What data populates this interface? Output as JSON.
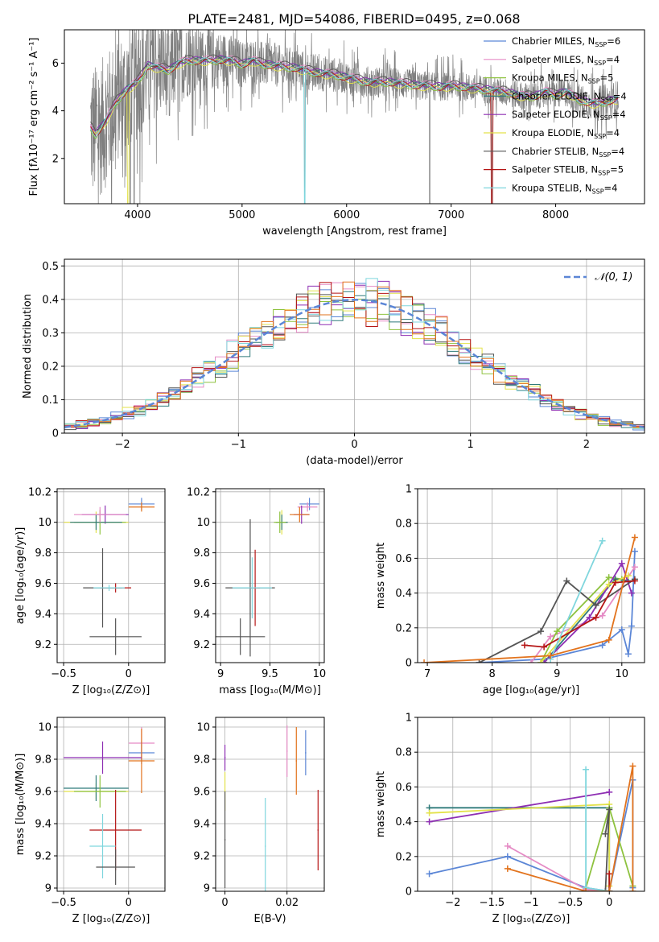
{
  "figure": {
    "title": "PLATE=2481, MJD=54086, FIBERID=0495, z=0.068"
  },
  "colors": {
    "chabrier_miles": "#5b86d6",
    "salpeter_miles": "#e58bc5",
    "kroupa_miles": "#8ec23f",
    "chabrier_elodie": "#2f7a7a",
    "salpeter_elodie": "#8e2fb3",
    "kroupa_elodie": "#e3e24a",
    "chabrier_stelib": "#555555",
    "salpeter_stelib": "#b51515",
    "kroupa_stelib": "#7fd6dd",
    "orange": "#e2731d",
    "spectrum": "#7f7f7f",
    "normal": "#5b86d6"
  },
  "chart_data": [
    {
      "id": "spectrum",
      "type": "line",
      "title": "PLATE=2481, MJD=54086, FIBERID=0495, z=0.068",
      "xlabel": "wavelength [Angstrom, rest frame]",
      "ylabel": "Flux [fλ10⁻¹⁷ erg cm⁻² s⁻¹ A⁻¹]",
      "xlim": [
        3300,
        8850
      ],
      "ylim": [
        0.1,
        7.4
      ],
      "xticks": [
        4000,
        5000,
        6000,
        7000,
        8000
      ],
      "yticks": [
        2,
        4,
        6
      ],
      "grid": false,
      "legend_position": "top-right",
      "legend": [
        {
          "label": "Chabrier MILES, N",
          "sub": "SSP",
          "eq": "=6",
          "color": "#5b86d6"
        },
        {
          "label": "Salpeter MILES, N",
          "sub": "SSP",
          "eq": "=4",
          "color": "#e58bc5"
        },
        {
          "label": "Kroupa MILES, N",
          "sub": "SSP",
          "eq": "=5",
          "color": "#8ec23f"
        },
        {
          "label": "Chabrier ELODIE, N",
          "sub": "SSP",
          "eq": "=4",
          "color": "#2f7a7a"
        },
        {
          "label": "Salpeter ELODIE, N",
          "sub": "SSP",
          "eq": "=4",
          "color": "#8e2fb3"
        },
        {
          "label": "Kroupa ELODIE, N",
          "sub": "SSP",
          "eq": "=4",
          "color": "#e3e24a"
        },
        {
          "label": "Chabrier STELIB, N",
          "sub": "SSP",
          "eq": "=4",
          "color": "#555555"
        },
        {
          "label": "Salpeter STELIB, N",
          "sub": "SSP",
          "eq": "=5",
          "color": "#b51515"
        },
        {
          "label": "Kroupa STELIB, N",
          "sub": "SSP",
          "eq": "=4",
          "color": "#7fd6dd"
        }
      ],
      "continuum": [
        [
          3550,
          3.3
        ],
        [
          3600,
          3.0
        ],
        [
          3700,
          3.6
        ],
        [
          3800,
          4.4
        ],
        [
          3900,
          4.9
        ],
        [
          4000,
          5.2
        ],
        [
          4100,
          5.9
        ],
        [
          4200,
          5.8
        ],
        [
          4300,
          5.7
        ],
        [
          4400,
          6.0
        ],
        [
          4500,
          6.1
        ],
        [
          4600,
          6.1
        ],
        [
          4700,
          6.1
        ],
        [
          4800,
          6.15
        ],
        [
          4900,
          6.1
        ],
        [
          5000,
          5.95
        ],
        [
          5100,
          6.1
        ],
        [
          5200,
          5.95
        ],
        [
          5300,
          5.9
        ],
        [
          5400,
          5.85
        ],
        [
          5500,
          5.8
        ],
        [
          5600,
          5.7
        ],
        [
          5700,
          5.6
        ],
        [
          5800,
          5.55
        ],
        [
          5900,
          5.5
        ],
        [
          6000,
          5.4
        ],
        [
          6100,
          5.3
        ],
        [
          6200,
          5.2
        ],
        [
          6300,
          5.2
        ],
        [
          6400,
          5.2
        ],
        [
          6500,
          5.15
        ],
        [
          6600,
          5.1
        ],
        [
          6700,
          5.05
        ],
        [
          6800,
          5.05
        ],
        [
          6900,
          5.0
        ],
        [
          7000,
          5.05
        ],
        [
          7100,
          5.0
        ],
        [
          7200,
          4.95
        ],
        [
          7300,
          4.9
        ],
        [
          7400,
          4.85
        ],
        [
          7500,
          4.8
        ],
        [
          7600,
          4.7
        ],
        [
          7700,
          4.6
        ],
        [
          7800,
          4.6
        ],
        [
          7900,
          4.8
        ],
        [
          8000,
          4.65
        ],
        [
          8100,
          4.8
        ],
        [
          8200,
          4.5
        ],
        [
          8300,
          4.35
        ],
        [
          8400,
          4.3
        ],
        [
          8500,
          4.4
        ],
        [
          8600,
          4.5
        ]
      ],
      "noise": [
        [
          3550,
          3.0
        ],
        [
          4000,
          2.5
        ],
        [
          4500,
          1.5
        ],
        [
          5000,
          1.0
        ],
        [
          6000,
          0.7
        ],
        [
          7000,
          0.6
        ],
        [
          7500,
          0.6
        ],
        [
          8000,
          0.6
        ],
        [
          8600,
          0.8
        ]
      ],
      "absorption_lines": [
        [
          3930,
          0.1
        ],
        [
          3968,
          0.1
        ],
        [
          5600,
          0.1
        ],
        [
          6795,
          0.1
        ],
        [
          7390,
          0.1
        ],
        [
          4305,
          3.8
        ],
        [
          5175,
          5.2
        ],
        [
          5890,
          5.0
        ]
      ],
      "model_offsets": [
        0.0,
        0.15,
        -0.1,
        0.05,
        0.1,
        -0.15,
        0.2,
        -0.05,
        0.0
      ]
    },
    {
      "id": "residuals",
      "type": "step",
      "xlabel": "(data-model)/error",
      "ylabel": "Normed distribution",
      "xlim": [
        -2.5,
        2.5
      ],
      "ylim": [
        0.0,
        0.52
      ],
      "xticks": [
        -2,
        -1,
        0,
        1,
        2
      ],
      "yticks": [
        0.0,
        0.1,
        0.2,
        0.3,
        0.4,
        0.5
      ],
      "grid": true,
      "legend_position": "top-right",
      "legend_label": "𝒩(0, 1)",
      "bin_width": 0.1
    },
    {
      "id": "age_vs_Z",
      "type": "errorbar",
      "xlabel": "Z [log₁₀(Z/Z⊙)]",
      "ylabel": "age  [log₁₀(age/yr)]",
      "xlim": [
        -0.55,
        0.28
      ],
      "ylim": [
        9.08,
        10.22
      ],
      "xticks": [
        -0.5,
        0.0
      ],
      "yticks": [
        9.2,
        9.4,
        9.6,
        9.8,
        10.0,
        10.2
      ],
      "grid": true,
      "points": [
        {
          "x": 0.1,
          "y": 10.12,
          "xerr": 0.1,
          "yerr": 0.04,
          "color": "#5b86d6"
        },
        {
          "x": 0.1,
          "y": 10.1,
          "xerr": 0.1,
          "yerr": 0.03,
          "color": "#e2731d"
        },
        {
          "x": -0.18,
          "y": 10.05,
          "xerr": 0.18,
          "yerr": 0.06,
          "color": "#8e2fb3"
        },
        {
          "x": -0.25,
          "y": 10.0,
          "xerr": 0.25,
          "yerr": 0.07,
          "color": "#e3e24a"
        },
        {
          "x": -0.22,
          "y": 10.0,
          "xerr": 0.2,
          "yerr": 0.08,
          "color": "#8ec23f"
        },
        {
          "x": -0.25,
          "y": 10.0,
          "xerr": 0.2,
          "yerr": 0.05,
          "color": "#2f7a7a"
        },
        {
          "x": -0.22,
          "y": 10.05,
          "xerr": 0.2,
          "yerr": 0.05,
          "color": "#e58bc5"
        },
        {
          "x": -0.2,
          "y": 9.57,
          "xerr": 0.15,
          "yerr": 0.26,
          "color": "#555555"
        },
        {
          "x": -0.1,
          "y": 9.57,
          "xerr": 0.12,
          "yerr": 0.03,
          "color": "#b51515"
        },
        {
          "x": -0.1,
          "y": 9.25,
          "xerr": 0.2,
          "yerr": 0.12,
          "color": "#555555"
        },
        {
          "x": -0.15,
          "y": 9.57,
          "xerr": 0.12,
          "yerr": 0.02,
          "color": "#7fd6dd"
        }
      ]
    },
    {
      "id": "age_vs_mass",
      "type": "errorbar",
      "xlabel": "mass [log₁₀(M/M⊙)]",
      "ylabel": "",
      "xlim": [
        8.95,
        10.05
      ],
      "ylim": [
        9.08,
        10.22
      ],
      "xticks": [
        9.0,
        9.5,
        10.0
      ],
      "yticks": [
        9.2,
        9.4,
        9.6,
        9.8,
        10.0,
        10.2
      ],
      "grid": true,
      "points": [
        {
          "x": 9.9,
          "y": 10.12,
          "xerr": 0.1,
          "yerr": 0.04,
          "color": "#5b86d6"
        },
        {
          "x": 9.88,
          "y": 10.1,
          "xerr": 0.1,
          "yerr": 0.03,
          "color": "#e58bc5"
        },
        {
          "x": 9.82,
          "y": 10.05,
          "xerr": 0.08,
          "yerr": 0.06,
          "color": "#8e2fb3"
        },
        {
          "x": 9.8,
          "y": 10.05,
          "xerr": 0.1,
          "yerr": 0.05,
          "color": "#e2731d"
        },
        {
          "x": 9.62,
          "y": 10.0,
          "xerr": 0.06,
          "yerr": 0.08,
          "color": "#e3e24a"
        },
        {
          "x": 9.62,
          "y": 10.0,
          "xerr": 0.06,
          "yerr": 0.05,
          "color": "#2f7a7a"
        },
        {
          "x": 9.6,
          "y": 10.0,
          "xerr": 0.06,
          "yerr": 0.07,
          "color": "#8ec23f"
        },
        {
          "x": 9.3,
          "y": 9.57,
          "xerr": 0.25,
          "yerr": 0.45,
          "color": "#555555"
        },
        {
          "x": 9.35,
          "y": 9.57,
          "xerr": 0.05,
          "yerr": 0.25,
          "color": "#b51515"
        },
        {
          "x": 9.32,
          "y": 9.57,
          "xerr": 0.2,
          "yerr": 0.2,
          "color": "#7fd6dd"
        },
        {
          "x": 9.2,
          "y": 9.25,
          "xerr": 0.25,
          "yerr": 0.12,
          "color": "#555555"
        }
      ]
    },
    {
      "id": "massweight_vs_age",
      "type": "line",
      "xlabel": "age  [log₁₀(age/yr)]",
      "ylabel": "mass weight",
      "xlim": [
        6.85,
        10.35
      ],
      "ylim": [
        0.0,
        1.0
      ],
      "xticks": [
        7,
        8,
        9,
        10
      ],
      "yticks": [
        0.0,
        0.2,
        0.4,
        0.6,
        0.8,
        1.0
      ],
      "grid": true,
      "series": [
        {
          "color": "#5b86d6",
          "x": [
            7.8,
            8.8,
            9.7,
            10.0,
            10.1,
            10.15,
            10.2
          ],
          "y": [
            0.0,
            0.02,
            0.1,
            0.19,
            0.05,
            0.21,
            0.64
          ]
        },
        {
          "color": "#e58bc5",
          "x": [
            8.6,
            8.9,
            9.7,
            10.2
          ],
          "y": [
            0.0,
            0.15,
            0.27,
            0.55
          ]
        },
        {
          "color": "#8ec23f",
          "x": [
            8.75,
            9.0,
            9.8,
            10.0
          ],
          "y": [
            0.0,
            0.18,
            0.49,
            0.48
          ]
        },
        {
          "color": "#2f7a7a",
          "x": [
            8.8,
            9.9,
            10.1
          ],
          "y": [
            0.0,
            0.48,
            0.47
          ]
        },
        {
          "color": "#8e2fb3",
          "x": [
            8.8,
            9.5,
            10.0,
            10.15
          ],
          "y": [
            0.0,
            0.26,
            0.57,
            0.4
          ]
        },
        {
          "color": "#e3e24a",
          "x": [
            8.75,
            9.8,
            10.1
          ],
          "y": [
            0.0,
            0.45,
            0.5
          ]
        },
        {
          "color": "#555555",
          "x": [
            7.8,
            8.75,
            9.15,
            9.6,
            10.2
          ],
          "y": [
            0.0,
            0.18,
            0.47,
            0.33,
            0.48
          ]
        },
        {
          "color": "#b51515",
          "x": [
            8.5,
            8.8,
            9.6,
            9.9,
            10.2
          ],
          "y": [
            0.1,
            0.09,
            0.26,
            0.46,
            0.47
          ]
        },
        {
          "color": "#7fd6dd",
          "x": [
            8.9,
            9.7
          ],
          "y": [
            0.02,
            0.7
          ]
        },
        {
          "color": "#e2731d",
          "x": [
            6.95,
            8.9,
            9.8,
            10.2
          ],
          "y": [
            0.0,
            0.04,
            0.13,
            0.72
          ]
        }
      ]
    },
    {
      "id": "mass_vs_Z",
      "type": "errorbar",
      "xlabel": "Z [log₁₀(Z/Z⊙)]",
      "ylabel": "mass [log₁₀(M/M⊙)]",
      "xlim": [
        -0.55,
        0.28
      ],
      "ylim": [
        8.98,
        10.06
      ],
      "xticks": [
        -0.5,
        0.0
      ],
      "yticks": [
        9.0,
        9.2,
        9.4,
        9.6,
        9.8,
        10.0
      ],
      "grid": true,
      "points": [
        {
          "x": 0.1,
          "y": 9.9,
          "xerr": 0.1,
          "yerr": 0.1,
          "color": "#e58bc5"
        },
        {
          "x": 0.1,
          "y": 9.84,
          "xerr": 0.1,
          "yerr": 0.07,
          "color": "#5b86d6"
        },
        {
          "x": 0.1,
          "y": 9.79,
          "xerr": 0.1,
          "yerr": 0.2,
          "color": "#e2731d"
        },
        {
          "x": -0.2,
          "y": 9.81,
          "xerr": 0.3,
          "yerr": 0.1,
          "color": "#8e2fb3"
        },
        {
          "x": -0.25,
          "y": 9.6,
          "xerr": 0.25,
          "yerr": 0.05,
          "color": "#e3e24a"
        },
        {
          "x": -0.25,
          "y": 9.62,
          "xerr": 0.25,
          "yerr": 0.08,
          "color": "#2f7a7a"
        },
        {
          "x": -0.22,
          "y": 9.6,
          "xerr": 0.2,
          "yerr": 0.1,
          "color": "#8ec23f"
        },
        {
          "x": -0.1,
          "y": 9.36,
          "xerr": 0.2,
          "yerr": 0.25,
          "color": "#b51515"
        },
        {
          "x": -0.2,
          "y": 9.26,
          "xerr": 0.1,
          "yerr": 0.2,
          "color": "#7fd6dd"
        },
        {
          "x": -0.1,
          "y": 9.13,
          "xerr": 0.15,
          "yerr": 0.11,
          "color": "#555555"
        }
      ]
    },
    {
      "id": "mass_vs_ebv",
      "type": "errorbar",
      "xlabel": "E(B-V)",
      "ylabel": "",
      "xlim": [
        -0.003,
        0.032
      ],
      "ylim": [
        8.98,
        10.06
      ],
      "xticks": [
        0.0,
        0.02
      ],
      "yticks": [
        9.0,
        9.2,
        9.4,
        9.6,
        9.8,
        10.0
      ],
      "grid": true,
      "points": [
        {
          "x": 0.0,
          "y": 9.81,
          "xerr": 0.0002,
          "yerr": 0.08,
          "color": "#8e2fb3"
        },
        {
          "x": 0.0,
          "y": 9.6,
          "xerr": 0.0002,
          "yerr": 0.12,
          "color": "#e3e24a"
        },
        {
          "x": 0.0,
          "y": 9.3,
          "xerr": 0.0002,
          "yerr": 0.3,
          "color": "#555555"
        },
        {
          "x": 0.013,
          "y": 9.26,
          "xerr": 0.0002,
          "yerr": 0.3,
          "color": "#7fd6dd"
        },
        {
          "x": 0.02,
          "y": 9.85,
          "xerr": 0.0002,
          "yerr": 0.16,
          "color": "#e58bc5"
        },
        {
          "x": 0.023,
          "y": 9.79,
          "xerr": 0.0002,
          "yerr": 0.21,
          "color": "#e2731d"
        },
        {
          "x": 0.026,
          "y": 9.84,
          "xerr": 0.0002,
          "yerr": 0.14,
          "color": "#5b86d6"
        },
        {
          "x": 0.03,
          "y": 9.36,
          "xerr": 0.0002,
          "yerr": 0.25,
          "color": "#b51515"
        }
      ]
    },
    {
      "id": "massweight_vs_Z",
      "type": "line",
      "xlabel": "Z [log₁₀(Z/Z⊙)]",
      "ylabel": "mass weight",
      "xlim": [
        -2.45,
        0.45
      ],
      "ylim": [
        0.0,
        1.0
      ],
      "xticks": [
        -2.0,
        -1.5,
        -1.0,
        -0.5,
        0.0
      ],
      "yticks": [
        0.0,
        0.2,
        0.4,
        0.6,
        0.8,
        1.0
      ],
      "grid": true,
      "series": [
        {
          "color": "#5b86d6",
          "x": [
            -2.3,
            -1.3,
            -0.3,
            0.0,
            0.3,
            0.3
          ],
          "y": [
            0.1,
            0.2,
            0.02,
            0.0,
            0.64,
            0.02
          ]
        },
        {
          "color": "#e58bc5",
          "x": [
            -1.3,
            -0.3,
            0.0
          ],
          "y": [
            0.26,
            0.01,
            0.0
          ]
        },
        {
          "color": "#2f7a7a",
          "x": [
            -2.3,
            0.0,
            0.0
          ],
          "y": [
            0.48,
            0.48,
            0.0
          ]
        },
        {
          "color": "#8e2fb3",
          "x": [
            -2.3,
            0.0
          ],
          "y": [
            0.4,
            0.57
          ]
        },
        {
          "color": "#e3e24a",
          "x": [
            -2.3,
            0.0,
            0.0
          ],
          "y": [
            0.45,
            0.5,
            0.03
          ]
        },
        {
          "color": "#8ec23f",
          "x": [
            -0.3,
            0.0,
            0.3
          ],
          "y": [
            0.02,
            0.48,
            0.03
          ]
        },
        {
          "color": "#555555",
          "x": [
            -0.05,
            0.0,
            -0.05
          ],
          "y": [
            0.33,
            0.47,
            0.0
          ]
        },
        {
          "color": "#b51515",
          "x": [
            0.0,
            0.0
          ],
          "y": [
            0.1,
            0.0
          ]
        },
        {
          "color": "#7fd6dd",
          "x": [
            -0.3,
            -0.3,
            0.0
          ],
          "y": [
            0.7,
            0.02,
            0.0
          ]
        },
        {
          "color": "#e2731d",
          "x": [
            -1.3,
            -0.3,
            0.0,
            0.3,
            0.3
          ],
          "y": [
            0.13,
            0.0,
            0.0,
            0.72,
            0.0
          ]
        }
      ]
    }
  ]
}
